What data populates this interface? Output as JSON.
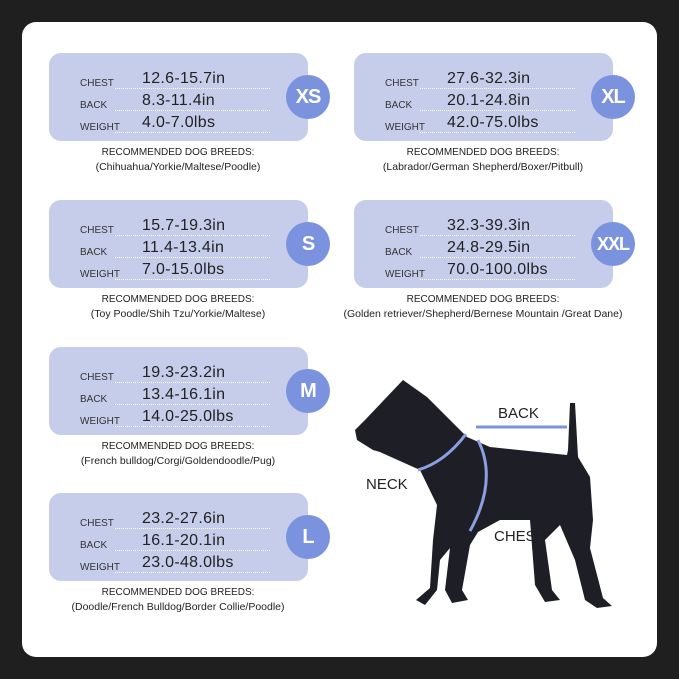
{
  "colors": {
    "card": "#c6cdea",
    "badge": "#7b93df",
    "background": "#1f1f1f"
  },
  "labels": {
    "chest": "CHEST",
    "back": "BACK",
    "weight": "WEIGHT",
    "breeds_heading": "RECOMMENDED DOG BREEDS:"
  },
  "sizes": [
    {
      "size": "XS",
      "chest": "12.6-15.7in",
      "back": "8.3-11.4in",
      "weight": "4.0-7.0lbs",
      "breeds": "(Chihuahua/Yorkie/Maltese/Poodle)"
    },
    {
      "size": "S",
      "chest": "15.7-19.3in",
      "back": "11.4-13.4in",
      "weight": "7.0-15.0lbs",
      "breeds": "(Toy Poodle/Shih Tzu/Yorkie/Maltese)"
    },
    {
      "size": "M",
      "chest": "19.3-23.2in",
      "back": "13.4-16.1in",
      "weight": "14.0-25.0lbs",
      "breeds": "(French bulldog/Corgi/Goldendoodle/Pug)"
    },
    {
      "size": "L",
      "chest": "23.2-27.6in",
      "back": "16.1-20.1in",
      "weight": "23.0-48.0lbs",
      "breeds": "(Doodle/French Bulldog/Border Collie/Poodle)"
    },
    {
      "size": "XL",
      "chest": "27.6-32.3in",
      "back": "20.1-24.8in",
      "weight": "42.0-75.0lbs",
      "breeds": "(Labrador/German Shepherd/Boxer/Pitbull)"
    },
    {
      "size": "XXL",
      "chest": "32.3-39.3in",
      "back": "24.8-29.5in",
      "weight": "70.0-100.0lbs",
      "breeds": "(Golden retriever/Shepherd/Bernese Mountain /Great Dane)"
    }
  ],
  "diagram": {
    "back": "BACK",
    "neck": "NECK",
    "chest": "CHEST"
  }
}
